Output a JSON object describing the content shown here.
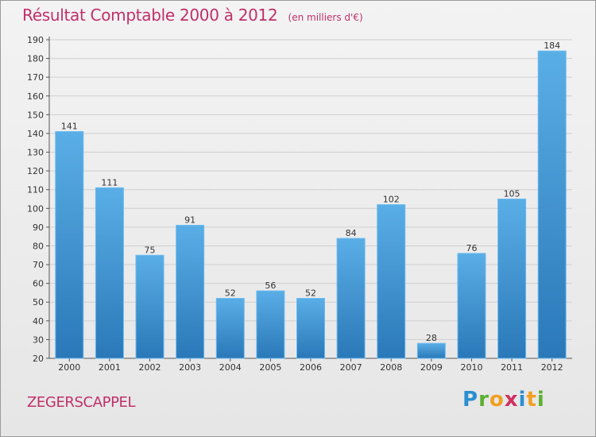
{
  "chart_data": {
    "type": "bar",
    "title": "Résultat Comptable 2000 à 2012",
    "subtitle": "(en milliers d'€)",
    "categories": [
      "2000",
      "2001",
      "2002",
      "2003",
      "2004",
      "2005",
      "2006",
      "2007",
      "2008",
      "2009",
      "2010",
      "2011",
      "2012"
    ],
    "values": [
      141,
      111,
      75,
      91,
      52,
      56,
      52,
      84,
      102,
      28,
      76,
      105,
      184
    ],
    "ylim": [
      20,
      190
    ],
    "yticks": [
      20,
      30,
      40,
      50,
      60,
      70,
      80,
      90,
      100,
      110,
      120,
      130,
      140,
      150,
      160,
      170,
      180,
      190
    ],
    "grid": "horizontal",
    "bar_color": "#4a9fdc",
    "bar_color_dark": "#2a78b8"
  },
  "footer": {
    "commune": "ZEGERSCAPPEL",
    "logo": "Proxiti"
  }
}
